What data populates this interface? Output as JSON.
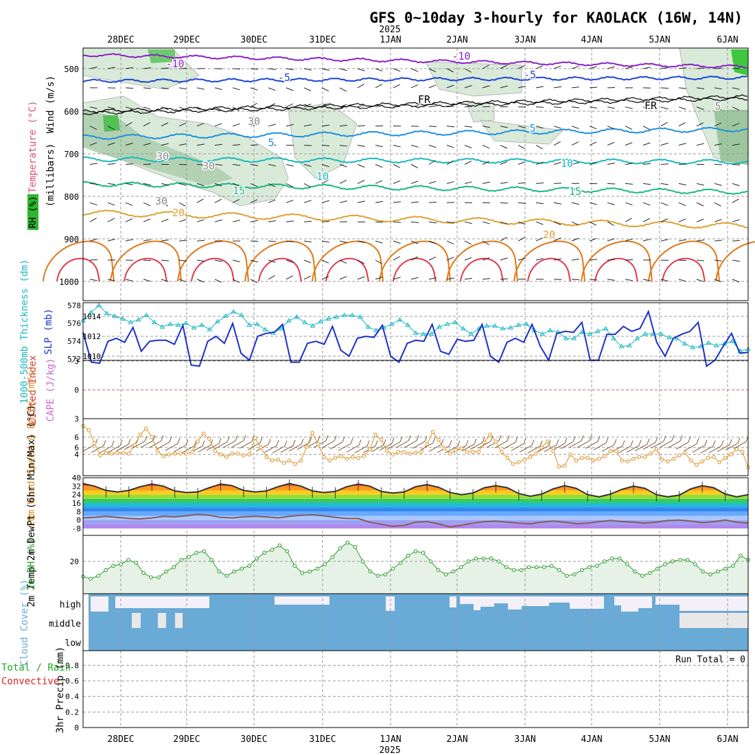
{
  "title": "GFS 0~10day 3-hourly for KAOLACK (16W, 14N)",
  "year_label": "2025",
  "dates": [
    "28DEC",
    "29DEC",
    "30DEC",
    "31DEC",
    "1JAN",
    "2JAN",
    "3JAN",
    "4JAN",
    "5JAN",
    "6JAN"
  ],
  "colors": {
    "temp_m10": "#8a1fc8",
    "temp_m5": "#1a44d6",
    "temp_5": "#1e8fe0",
    "temp_10": "#18b8c0",
    "temp_15": "#18b880",
    "temp_20": "#e0a030",
    "temp_25": "#e07818",
    "temp_30": "#e03848",
    "rh_fill": "#9cd39c",
    "slp": "#1a30c8",
    "thickness": "#18b8c0",
    "wind10m": "#e09020",
    "rh2m": "#2a9a2a",
    "cloud": "#6aaad6",
    "precip_total": "#22aa22",
    "precip_conv": "#dd2222",
    "cape": "#cc66cc",
    "li": "#dd3333"
  },
  "chart_data": [
    {
      "type": "contour",
      "panel": "upper-air",
      "ylabel": "(millibars)",
      "yticks": [
        "500",
        "600",
        "700",
        "800",
        "900",
        "1000"
      ],
      "legend": [
        "Wind (m/s)",
        "Temperature (°C)",
        "RH (%)"
      ],
      "contour_labels": [
        "-10",
        "-5",
        "FR",
        "5",
        "10",
        "15",
        "20",
        "20",
        "30",
        "30",
        "30",
        "30",
        "-10",
        "-5",
        "FR",
        "5",
        "10",
        "15",
        "5"
      ]
    },
    {
      "type": "line",
      "panel": "slp-thickness",
      "ylabel_left": "1000-500mb Thickness (dm)",
      "ylabel_right": "SLP (mb)",
      "yticks_left": [
        "572",
        "574",
        "576",
        "578"
      ],
      "yticks_right": [
        "1010",
        "1012",
        "1014"
      ],
      "series": [
        {
          "name": "SLP (mb)",
          "values": [
            1012.4,
            1009.4,
            1009.3,
            1011.5,
            1011.8,
            1011.4,
            1012.9,
            1010.5,
            1011.5,
            1011.6,
            1011.6,
            1011.2,
            1013.1,
            1009.1,
            1009.0,
            1011.5,
            1012.0,
            1011.3,
            1013.3,
            1010.3,
            1009.6,
            1012.0,
            1012.3,
            1012.4,
            1013.2,
            1009.4,
            1009.4,
            1011.3,
            1011.5,
            1011.2,
            1013.0,
            1010.6,
            1010.0,
            1011.8,
            1012.0,
            1011.9,
            1013.1,
            1010.0,
            1009.4,
            1011.3,
            1011.6,
            1011.5,
            1013.2,
            1010.5,
            1010.2,
            1011.7,
            1011.5,
            1011.6,
            1013.2,
            1010.0,
            1009.4,
            1011.4,
            1011.8,
            1011.4,
            1013.2,
            1011.0,
            1009.6,
            1012.3,
            1012.5,
            1012.4,
            1013.4,
            1009.6,
            1009.6,
            1012.2,
            1012.2,
            1013.0,
            1012.5,
            1012.8,
            1014.5,
            1011.4,
            1010.0,
            1011.8,
            1012.2,
            1012.5,
            1013.4,
            1009.0,
            1009.6,
            1011.0,
            1012.3,
            1010.3,
            1010.4
          ]
        },
        {
          "name": "Thickness (dm)",
          "values": [
            576.3,
            577.2,
            578.0,
            577.1,
            576.8,
            576.5,
            576.1,
            576.4,
            576.9,
            576.1,
            575.6,
            575.9,
            575.8,
            576.0,
            575.5,
            575.8,
            575.3,
            576.2,
            576.8,
            577.3,
            576.9,
            575.8,
            575.9,
            575.3,
            574.9,
            575.4,
            576.3,
            576.7,
            576.1,
            575.7,
            576.2,
            576.5,
            576.7,
            576.9,
            576.9,
            576.7,
            575.6,
            575.2,
            575.5,
            575.9,
            576.4,
            575.8,
            574.9,
            574.8,
            574.8,
            575.6,
            575.9,
            576.1,
            575.4,
            574.8,
            575.4,
            575.7,
            575.7,
            575.4,
            575.5,
            575.8,
            575.9,
            575.2,
            574.8,
            575.2,
            575.0,
            574.3,
            574.3,
            575.0,
            574.8,
            575.1,
            575.4,
            574.3,
            573.4,
            573.5,
            574.3,
            574.8,
            574.8,
            574.8,
            574.4,
            574.3,
            573.7,
            573.3,
            573.4,
            573.8,
            573.5,
            573.7,
            574.0,
            572.9,
            573.1
          ]
        }
      ]
    },
    {
      "type": "line",
      "panel": "stability",
      "ylabel_left": "Lifted Index",
      "ylabel_right": "CAPE (J/kg)",
      "yticks_left": [
        "-3",
        "0",
        "3",
        "6"
      ],
      "series": [
        {
          "name": "CAPE (J/kg)",
          "values": []
        }
      ]
    },
    {
      "type": "line",
      "panel": "wind10m",
      "ylabel": "10m Wind Speed & Barbs (m/s)",
      "yticks": [
        "4",
        "6"
      ],
      "series": [
        {
          "name": "10m Wind Speed (m/s)",
          "values": [
            7.3,
            6.8,
            5.3,
            3.9,
            4.2,
            4.1,
            4.2,
            4.2,
            4.1,
            5.1,
            6.3,
            7.0,
            6.0,
            4.4,
            3.8,
            4.0,
            4.1,
            4.1,
            4.1,
            4.3,
            5.5,
            6.4,
            5.8,
            4.4,
            4.0,
            3.7,
            4.1,
            4.1,
            3.9,
            4.0,
            5.9,
            4.8,
            3.7,
            3.3,
            3.4,
            3.0,
            3.3,
            2.9,
            3.3,
            4.9,
            6.5,
            5.2,
            3.7,
            3.3,
            3.6,
            3.8,
            3.5,
            3.7,
            3.6,
            3.8,
            4.6,
            6.3,
            5.7,
            4.4,
            4.0,
            4.3,
            4.3,
            4.1,
            4.2,
            4.3,
            5.2,
            6.6,
            5.7,
            4.7,
            4.1,
            4.5,
            4.7,
            4.3,
            4.3,
            4.3,
            5.4,
            6.3,
            5.5,
            4.3,
            3.6,
            2.9,
            3.1,
            3.4,
            3.7,
            4.1,
            4.8,
            5.5,
            4.4,
            2.6,
            2.7,
            4.0,
            3.3,
            3.6,
            3.6,
            3.3,
            3.5,
            3.8,
            4.4,
            4.4,
            3.3,
            3.2,
            3.5,
            3.7,
            3.7,
            4.1,
            4.6,
            3.4,
            3.2,
            3.5,
            3.9,
            4.2,
            3.3,
            2.8,
            3.2,
            3.6,
            3.7,
            3.1,
            3.6,
            4.0,
            4.6,
            4.3,
            2.5
          ]
        }
      ]
    },
    {
      "type": "area",
      "panel": "temp2m",
      "ylabel": "2m Temp 2m DewPt (6hr Min/Max) (°C)",
      "yticks": [
        "-8",
        "0",
        "8",
        "16",
        "24",
        "32",
        "40"
      ],
      "series": [
        {
          "name": "2m Temp (°C)",
          "values": [
            34.5,
            32.0,
            28.0,
            26.5,
            28.0,
            31.5,
            34.0,
            32.0,
            27.5,
            26.0,
            26.5,
            30.5,
            34.0,
            32.5,
            28.0,
            26.5,
            27.5,
            31.5,
            34.5,
            32.0,
            27.5,
            26.0,
            27.0,
            31.5,
            34.0,
            32.0,
            27.0,
            25.5,
            26.5,
            31.5,
            33.5,
            31.0,
            26.0,
            24.0,
            25.5,
            30.5,
            32.5,
            30.5,
            25.0,
            22.5,
            24.5,
            29.5,
            32.5,
            30.0,
            24.0,
            22.0,
            24.5,
            29.0,
            32.0,
            30.0,
            24.0,
            22.0,
            23.5,
            29.5,
            32.5,
            30.5,
            24.5,
            22.0,
            24.0
          ]
        },
        {
          "name": "2m DewPt (°C)",
          "values": [
            2.0,
            2.5,
            3.5,
            2.5,
            1.5,
            1.0,
            2.0,
            3.5,
            3.0,
            4.0,
            5.5,
            4.5,
            2.5,
            2.0,
            3.0,
            3.5,
            3.0,
            2.0,
            3.5,
            4.5,
            5.0,
            4.0,
            2.5,
            1.5,
            1.5,
            -2.0,
            -4.0,
            -6.0,
            -5.0,
            -2.0,
            -1.5,
            -3.5,
            -6.5,
            -5.0,
            -3.0,
            -1.5,
            -1.0,
            -2.0,
            -3.0,
            -3.5,
            -2.0,
            -1.0,
            -2.0,
            -3.5,
            -3.0,
            -1.5,
            -0.5,
            -1.5,
            -2.0,
            -3.0,
            -2.0,
            -0.5,
            0.0,
            -1.0,
            -2.5,
            -1.5,
            0.0,
            -2.0,
            -3.0
          ]
        }
      ]
    },
    {
      "type": "line",
      "panel": "rh2m",
      "ylabel": "2m RH (%)",
      "yticks": [
        "20"
      ],
      "series": [
        {
          "name": "2m RH (%)",
          "values": [
            9.5,
            8,
            10,
            14,
            17,
            18,
            21,
            19,
            12,
            9,
            9,
            13,
            16,
            21,
            23,
            26,
            27,
            21,
            13,
            10,
            13,
            15,
            17,
            22,
            26,
            28,
            31,
            27,
            17,
            12,
            13,
            15,
            18,
            23,
            29,
            33,
            30,
            20,
            13,
            10,
            11,
            15,
            19,
            24,
            27,
            26,
            20,
            14,
            11,
            13,
            16,
            20,
            22,
            22,
            22,
            20,
            16,
            14,
            14,
            16,
            16,
            16,
            17,
            14,
            10,
            11,
            14,
            16,
            17,
            20,
            22,
            22,
            18,
            13,
            10,
            12,
            15,
            18,
            20,
            21,
            21,
            18,
            13,
            11,
            13,
            15,
            17,
            24,
            21
          ]
        }
      ]
    },
    {
      "type": "bar",
      "panel": "cloud",
      "ylabel": "Cloud Cover (%)",
      "categories": [
        "high",
        "middle",
        "low"
      ],
      "legend": [
        "high",
        "middle",
        "low"
      ]
    },
    {
      "type": "bar",
      "panel": "precip",
      "ylabel": "3hr Precip (mm)",
      "legend": [
        "Total / Rain",
        "Convective"
      ],
      "annotation": "Run Total = 0",
      "yticks": [
        "0",
        "0.2",
        "0.4",
        "0.6",
        "0.8"
      ],
      "series": [
        {
          "name": "3hr Precip (mm)",
          "values": []
        }
      ]
    }
  ]
}
